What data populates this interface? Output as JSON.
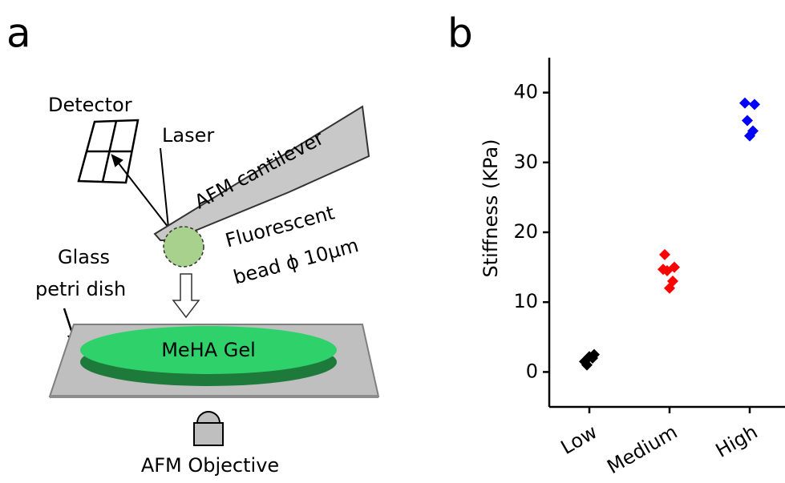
{
  "panel_labels": [
    "a",
    "b"
  ],
  "diagram": {
    "detector": "Detector",
    "laser": "Laser",
    "cantilever": "AFM cantilever",
    "bead": [
      "Fluorescent",
      "bead ϕ 10μm"
    ],
    "dish": [
      "Glass",
      "petri dish"
    ],
    "gel": "MeHA Gel",
    "objective": "AFM Objective"
  },
  "chart_data": {
    "type": "strip",
    "y_label": "Stiffness (KPa)",
    "categories": [
      "Low",
      "Medium",
      "High"
    ],
    "colors": [
      "#000000",
      "#ff0000",
      "#0000ff"
    ],
    "values": [
      [
        1.5,
        2.5,
        1.0,
        2.0,
        2.2
      ],
      [
        16.8,
        15.0,
        14.5,
        13.0,
        12.0,
        14.7
      ],
      [
        38.5,
        38.3,
        36.0,
        34.5,
        33.8
      ]
    ],
    "ylim": [
      -5,
      45
    ],
    "yticks": [
      0,
      10,
      20,
      30,
      40
    ]
  }
}
